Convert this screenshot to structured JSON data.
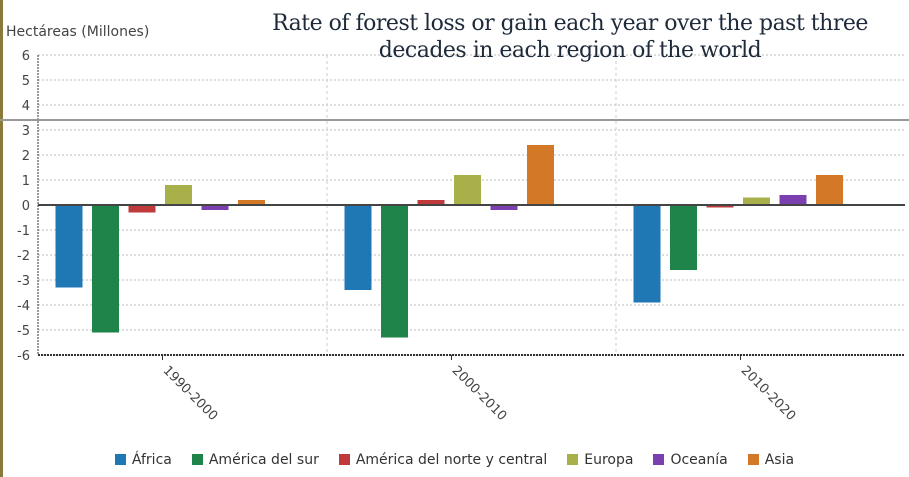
{
  "chart_data": {
    "type": "bar",
    "title": "Rate of forest loss or gain each year over the past three decades in each region of the world",
    "ylabel": "Hectáreas (Millones)",
    "xlabel": "",
    "ylim": [
      -6,
      6
    ],
    "yticks": [
      6,
      5,
      4,
      3,
      2,
      1,
      0,
      -1,
      -2,
      -3,
      -4,
      -5,
      -6
    ],
    "grid": true,
    "legend_position": "bottom",
    "categories": [
      "1990-2000",
      "2000-2010",
      "2010-2020"
    ],
    "series": [
      {
        "name": "África",
        "color": "#1f77b4",
        "values": [
          -3.3,
          -3.4,
          -3.9
        ]
      },
      {
        "name": "América del sur",
        "color": "#1e8449",
        "values": [
          -5.1,
          -5.3,
          -2.6
        ]
      },
      {
        "name": "América del norte y central",
        "color": "#c0393b",
        "values": [
          -0.3,
          0.2,
          -0.1
        ]
      },
      {
        "name": "Europa",
        "color": "#a8b049",
        "values": [
          0.8,
          1.2,
          0.3
        ]
      },
      {
        "name": "Oceanía",
        "color": "#7b3fb0",
        "values": [
          -0.2,
          -0.2,
          0.4
        ]
      },
      {
        "name": "Asia",
        "color": "#d37826",
        "values": [
          0.2,
          2.4,
          1.2
        ]
      }
    ]
  }
}
